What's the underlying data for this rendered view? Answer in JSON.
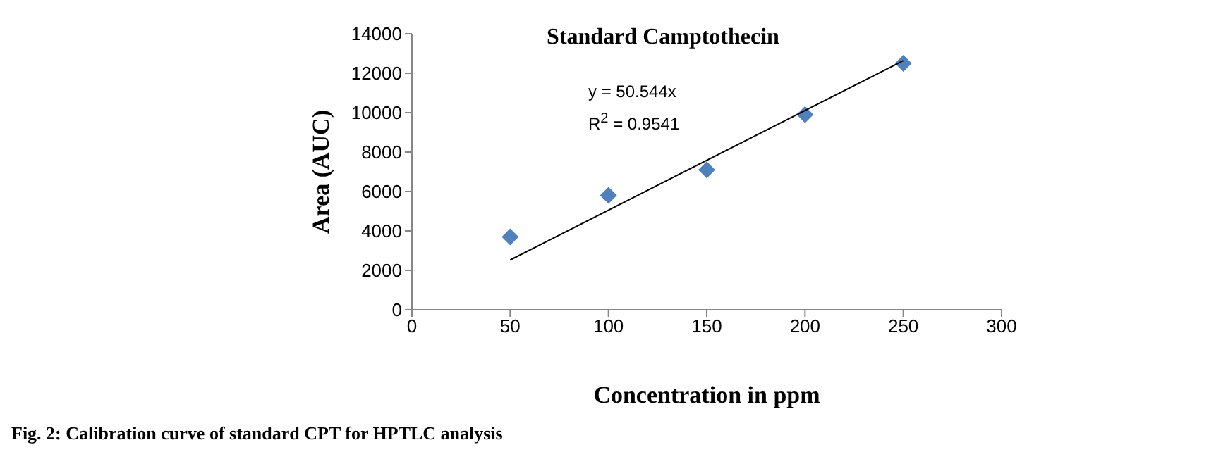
{
  "chart_data": {
    "type": "scatter",
    "title": "Standard Camptothecin",
    "xlabel": "Concentration in ppm",
    "ylabel": "Area (AUC)",
    "annotations": [
      "y = 50.544x\nR$^{2}$ = 0.9541",
      "Fig. 2: Calibration curve of standard CPT for HPTLC analysis"
    ],
    "x": [
      50,
      100,
      150,
      200,
      250
    ],
    "series": [
      {
        "color": "#4f81bd",
        "marker": "diamond",
        "values": [
          3700,
          5800,
          7100,
          9900,
          12500
        ]
      },
      {
        "type": "line",
        "color": "#000000",
        "marker": "none",
        "line_style": "solid",
        "x": [
          50,
          250
        ],
        "values": [
          2527,
          12636
        ]
      }
    ],
    "xlim": [
      0,
      300
    ],
    "xticks": [
      0,
      50,
      100,
      150,
      200,
      250,
      300
    ],
    "ylim": [
      0,
      14000
    ],
    "yticks": [
      0,
      2000,
      4000,
      6000,
      8000,
      10000,
      12000,
      14000
    ],
    "grid": false,
    "legend": false
  }
}
